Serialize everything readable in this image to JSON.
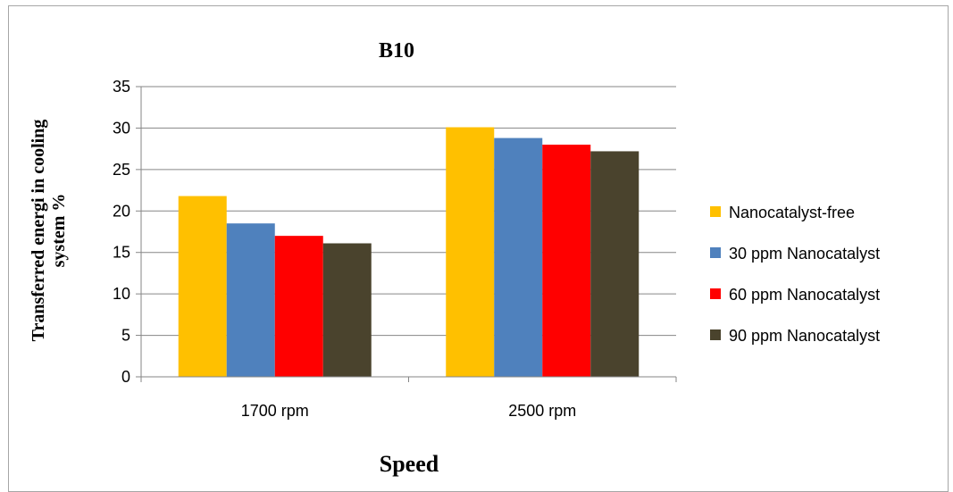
{
  "chart_data": {
    "type": "bar",
    "title": "B10",
    "xlabel": "Speed",
    "ylabel_lines": [
      "Transferred energi in cooling",
      "system %"
    ],
    "categories": [
      "1700 rpm",
      "2500 rpm"
    ],
    "ylim": [
      0,
      35
    ],
    "yticks": [
      0,
      5,
      10,
      15,
      20,
      25,
      30,
      35
    ],
    "grid": true,
    "legend_position": "right",
    "series": [
      {
        "name": "Nanocatalyst-free",
        "color": "#FFC000",
        "values": [
          21.8,
          30.1
        ]
      },
      {
        "name": "30 ppm Nanocatalyst",
        "color": "#4F81BD",
        "values": [
          18.5,
          28.8
        ]
      },
      {
        "name": "60 ppm Nanocatalyst",
        "color": "#FF0000",
        "values": [
          17.0,
          28.0
        ]
      },
      {
        "name": "90 ppm Nanocatalyst",
        "color": "#4A432D",
        "values": [
          16.1,
          27.2
        ]
      }
    ]
  }
}
